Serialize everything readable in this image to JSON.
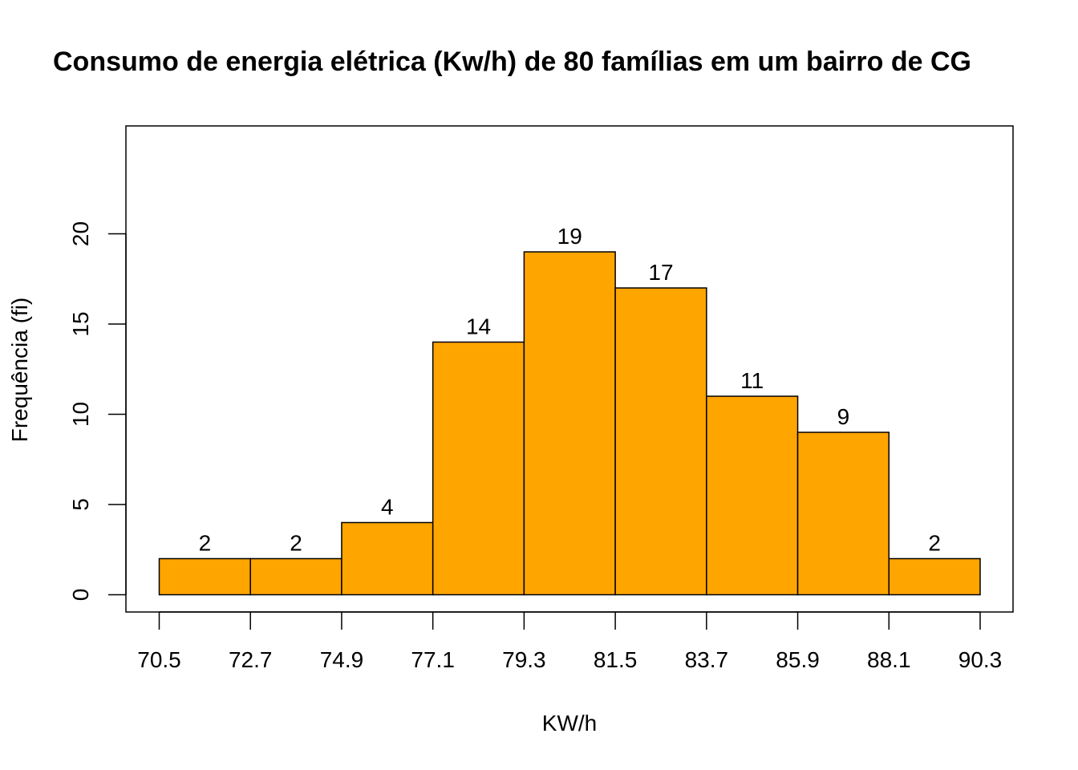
{
  "chart_data": {
    "type": "bar",
    "title": "Consumo de energia elétrica (Kw/h) de 80 famílias em um bairro de CG",
    "xlabel": "KW/h",
    "ylabel": "Frequência (fi)",
    "breaks": [
      70.5,
      72.7,
      74.9,
      77.1,
      79.3,
      81.5,
      83.7,
      85.9,
      88.1,
      90.3
    ],
    "x_tick_labels": [
      "70.5",
      "72.7",
      "74.9",
      "77.1",
      "79.3",
      "81.5",
      "83.7",
      "85.9",
      "88.1",
      "90.3"
    ],
    "values": [
      2,
      2,
      4,
      14,
      19,
      17,
      11,
      9,
      2
    ],
    "y_ticks": [
      0,
      5,
      10,
      15,
      20
    ],
    "ylim": [
      0,
      25
    ],
    "bar_color": "#FFA500",
    "grid": false,
    "legend": "none"
  }
}
